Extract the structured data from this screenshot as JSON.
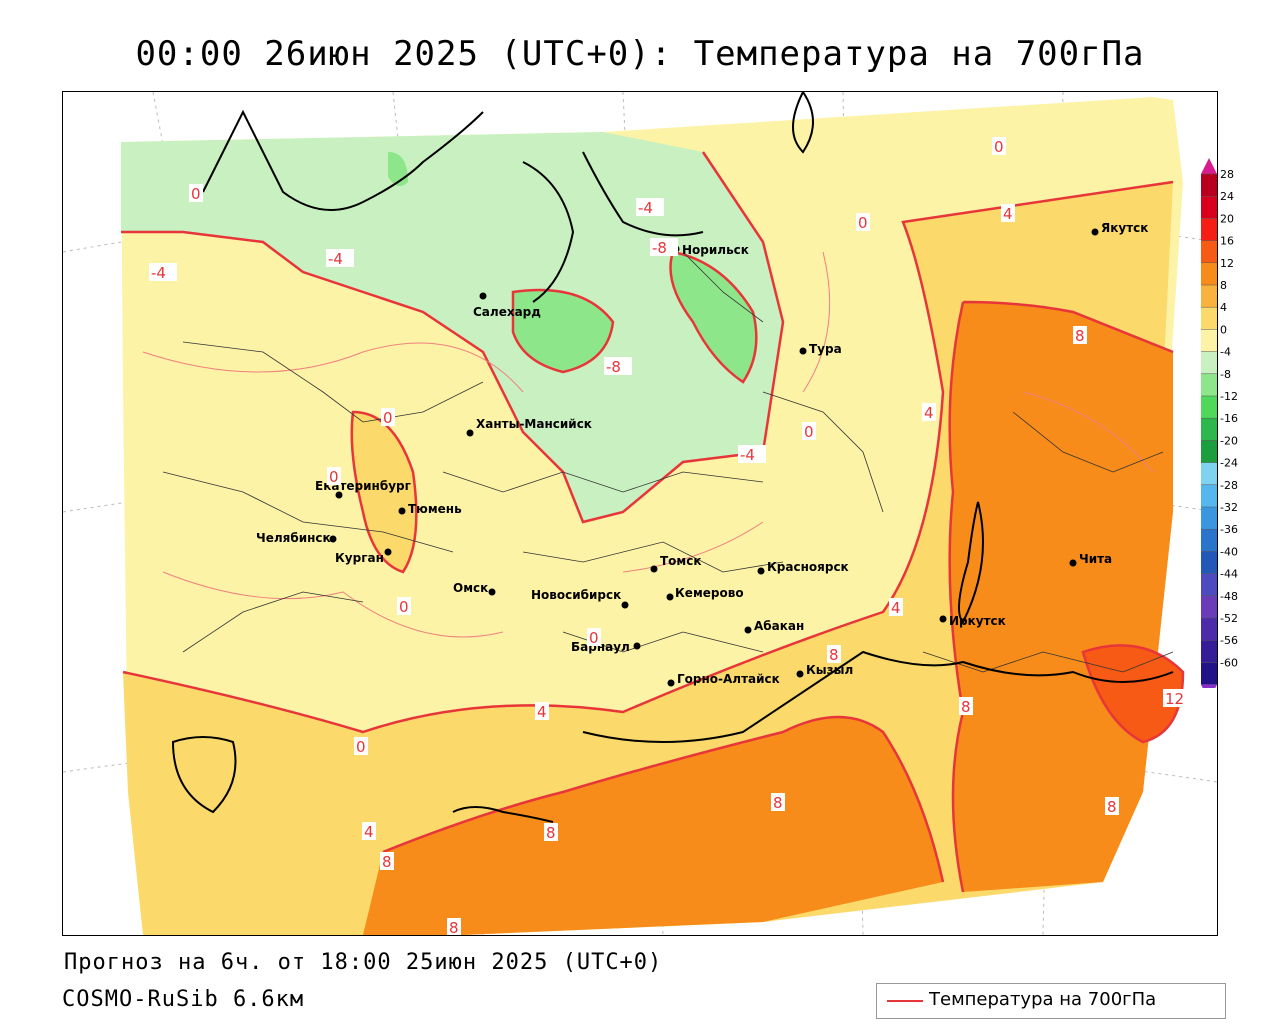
{
  "header": {
    "title": "00:00 26июн 2025 (UTC+0): Температура на 700гПа"
  },
  "footer": {
    "forecast": "Прогноз на 6ч. от 18:00 25июн 2025 (UTC+0)",
    "model": "COSMO-RuSib 6.6км"
  },
  "legend": {
    "label": "Температура на 700гПа",
    "color": "#e8353a"
  },
  "colorbar": {
    "labels": [
      "28",
      "24",
      "20",
      "16",
      "12",
      "8",
      "4",
      "0",
      "-4",
      "-8",
      "-12",
      "-16",
      "-20",
      "-24",
      "-28",
      "-32",
      "-36",
      "-40",
      "-44",
      "-48",
      "-52",
      "-56",
      "-60"
    ],
    "colors": [
      "#b8001e",
      "#d9001d",
      "#f51e14",
      "#f65a14",
      "#f78c1a",
      "#f9b23d",
      "#fbd96a",
      "#fdf3a6",
      "#c8f0c0",
      "#8ee68a",
      "#4fd85a",
      "#2cb84b",
      "#1a9e3e",
      "#7fd2f0",
      "#56b6ee",
      "#3b96e0",
      "#2a74cc",
      "#2259b8",
      "#4e4ac0",
      "#6a3cb8",
      "#4d2aa8",
      "#361d98",
      "#221288"
    ],
    "top_color": "#d81b8f",
    "bottom_color": "#8b2fc9"
  },
  "cities": [
    {
      "name": "Якутск"
    },
    {
      "name": "Норильск"
    },
    {
      "name": "Салехард"
    },
    {
      "name": "Тура"
    },
    {
      "name": "Ханты-Мансийск"
    },
    {
      "name": "Екатеринбург"
    },
    {
      "name": "Тюмень"
    },
    {
      "name": "Челябинск"
    },
    {
      "name": "Курган"
    },
    {
      "name": "Омск"
    },
    {
      "name": "Томск"
    },
    {
      "name": "Новосибирск"
    },
    {
      "name": "Кемерово"
    },
    {
      "name": "Красноярск"
    },
    {
      "name": "Барнаул"
    },
    {
      "name": "Абакан"
    },
    {
      "name": "Горно-Алтайск"
    },
    {
      "name": "Кызыл"
    },
    {
      "name": "Иркутск"
    },
    {
      "name": "Чита"
    }
  ],
  "isotherm_labels": [
    "-4",
    "0",
    "-4",
    "-4",
    "-8",
    "-8",
    "-4",
    "0",
    "4",
    "0",
    "0",
    "8",
    "4",
    "0",
    "0",
    "0",
    "0",
    "4",
    "8",
    "8",
    "4",
    "8",
    "12",
    "0",
    "4",
    "8",
    "8",
    "8",
    "8"
  ]
}
